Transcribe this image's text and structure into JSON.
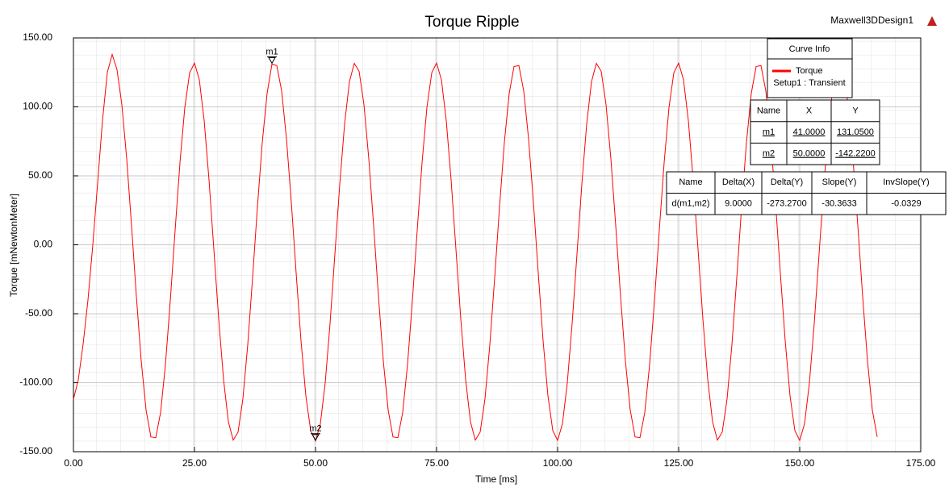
{
  "chart_data": {
    "type": "line",
    "title": "Torque Ripple",
    "app_label": "Maxwell3DDesign1",
    "x_label": "Time [ms]",
    "y_label": "Torque [mNewtonMeter]",
    "x": [
      0,
      1,
      2,
      3,
      4,
      5,
      6,
      7,
      8,
      9,
      10,
      11,
      12,
      13,
      14,
      15,
      16,
      17,
      18,
      19,
      20,
      21,
      22,
      23,
      24,
      25,
      26,
      27,
      28,
      29,
      30,
      31,
      32,
      33,
      34,
      35,
      36,
      37,
      38,
      39,
      40,
      41,
      42,
      43,
      44,
      45,
      46,
      47,
      48,
      49,
      50,
      51,
      52,
      53,
      54,
      55,
      56,
      57,
      58,
      59,
      60,
      61,
      62,
      63,
      64,
      65,
      66,
      67,
      68,
      69,
      70,
      71,
      72,
      73,
      74,
      75,
      76,
      77,
      78,
      79,
      80,
      81,
      82,
      83,
      84,
      85,
      86,
      87,
      88,
      89,
      90,
      91,
      92,
      93,
      94,
      95,
      96,
      97,
      98,
      99,
      100,
      101,
      102,
      103,
      104,
      105,
      106,
      107,
      108,
      109,
      110,
      111,
      112,
      113,
      114,
      115,
      116,
      117,
      118,
      119,
      120,
      121,
      122,
      123,
      124,
      125,
      126,
      127,
      128,
      129,
      130,
      131,
      132,
      133,
      134,
      135,
      136,
      137,
      138,
      139,
      140,
      141,
      142,
      143,
      144,
      145,
      146,
      147,
      148,
      149,
      150,
      151,
      152,
      153,
      154,
      155,
      156,
      157,
      158,
      159,
      160,
      161,
      162,
      163,
      164,
      165,
      166
    ],
    "series": [
      {
        "name": "Torque",
        "source": "Setup1 : Transient",
        "color": "#ff0000",
        "values": [
          -112,
          -98,
          -72,
          -40,
          0,
          45,
          90,
          125,
          138,
          127,
          101.6,
          62.4,
          13.9,
          -37.5,
          -84.2,
          -119.8,
          -139.3,
          -139.9,
          -121.6,
          -86.9,
          -40.8,
          10.5,
          59.5,
          99.5,
          124.7,
          131.8,
          119.7,
          90.1,
          47.1,
          -3.3,
          -53.8,
          -97.5,
          -128.3,
          -141.6,
          -135.8,
          -111.6,
          -72.4,
          -23.9,
          27.5,
          74.2,
          109.8,
          131.05,
          129.9,
          111.6,
          76.9,
          30.8,
          -20.5,
          -69.5,
          -109.5,
          -134.7,
          -142.22,
          -129.7,
          -100.1,
          -57.1,
          -6.7,
          43.8,
          87.5,
          118.3,
          131.6,
          125.8,
          101.6,
          62.4,
          13.9,
          -37.5,
          -84.2,
          -119.8,
          -139.3,
          -139.9,
          -121.6,
          -86.9,
          -40.8,
          10.5,
          59.5,
          99.5,
          124.7,
          131.8,
          119.7,
          90.1,
          47.1,
          -3.3,
          -53.8,
          -97.5,
          -128.3,
          -141.6,
          -135.8,
          -111.6,
          -72.4,
          -23.9,
          27.5,
          74.2,
          109.8,
          129.3,
          129.9,
          111.6,
          76.9,
          30.8,
          -20.5,
          -69.5,
          -109.5,
          -134.7,
          -141.8,
          -129.7,
          -100.1,
          -57.1,
          -6.7,
          43.8,
          87.5,
          118.3,
          131.6,
          125.8,
          101.6,
          62.4,
          13.9,
          -37.5,
          -84.2,
          -119.8,
          -139.3,
          -139.9,
          -121.6,
          -86.9,
          -40.8,
          10.5,
          59.5,
          99.5,
          124.7,
          131.8,
          119.7,
          90.1,
          47.1,
          -3.3,
          -53.8,
          -97.5,
          -128.3,
          -141.6,
          -135.8,
          -111.6,
          -72.4,
          -23.9,
          27.5,
          74.2,
          109.8,
          129.3,
          129.9,
          111.6,
          76.9,
          30.8,
          -20.5,
          -69.5,
          -109.5,
          -134.7,
          -141.8,
          -129.7,
          -100.1,
          -57.1,
          -6.7,
          43.8,
          87.5,
          118.3,
          131.6,
          125.8,
          101.6,
          62.4,
          13.9,
          -37.5,
          -84.2,
          -119.8,
          -139.3
        ]
      }
    ],
    "xlim": [
      0,
      175
    ],
    "ylim": [
      -150,
      150
    ],
    "xticks": [
      {
        "value": 0,
        "label": "0.00"
      },
      {
        "value": 25,
        "label": "25.00"
      },
      {
        "value": 50,
        "label": "50.00"
      },
      {
        "value": 75,
        "label": "75.00"
      },
      {
        "value": 100,
        "label": "100.00"
      },
      {
        "value": 125,
        "label": "125.00"
      },
      {
        "value": 150,
        "label": "150.00"
      },
      {
        "value": 175,
        "label": "175.00"
      }
    ],
    "yticks": [
      {
        "value": -150,
        "label": "-150.00"
      },
      {
        "value": -100,
        "label": "-100.00"
      },
      {
        "value": -50,
        "label": "-50.00"
      },
      {
        "value": 0,
        "label": "0.00"
      },
      {
        "value": 50,
        "label": "50.00"
      },
      {
        "value": 100,
        "label": "100.00"
      },
      {
        "value": 150,
        "label": "150.00"
      }
    ],
    "grid": true,
    "legend_title": "Curve Info",
    "markers": [
      {
        "name": "m1",
        "x": 41,
        "y": 131.05
      },
      {
        "name": "m2",
        "x": 50,
        "y": -142.22
      }
    ],
    "marker_table": {
      "columns": [
        "Name",
        "X",
        "Y"
      ],
      "rows": [
        [
          "m1",
          "41.0000",
          "131.0500"
        ],
        [
          "m2",
          "50.0000",
          "-142.2200"
        ]
      ]
    },
    "delta_table": {
      "columns": [
        "Name",
        "Delta(X)",
        "Delta(Y)",
        "Slope(Y)",
        "InvSlope(Y)"
      ],
      "rows": [
        [
          "d(m1,m2)",
          "9.0000",
          "-273.2700",
          "-30.3633",
          "-0.0329"
        ]
      ]
    }
  }
}
